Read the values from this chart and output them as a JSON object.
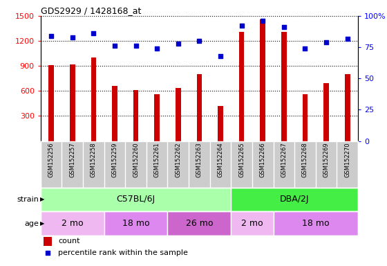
{
  "title": "GDS2929 / 1428168_at",
  "samples": [
    "GSM152256",
    "GSM152257",
    "GSM152258",
    "GSM152259",
    "GSM152260",
    "GSM152261",
    "GSM152262",
    "GSM152263",
    "GSM152264",
    "GSM152265",
    "GSM152266",
    "GSM152267",
    "GSM152268",
    "GSM152269",
    "GSM152270"
  ],
  "counts": [
    910,
    915,
    1000,
    660,
    615,
    560,
    640,
    800,
    420,
    1310,
    1460,
    1310,
    560,
    690,
    800
  ],
  "percentile_ranks": [
    84,
    83,
    86,
    76,
    76,
    74,
    78,
    80,
    68,
    92,
    96,
    91,
    74,
    79,
    82
  ],
  "ylim_left": [
    0,
    1500
  ],
  "ylim_right": [
    0,
    100
  ],
  "yticks_left": [
    300,
    600,
    900,
    1200,
    1500
  ],
  "yticks_right": [
    0,
    25,
    50,
    75,
    100
  ],
  "bar_color": "#cc0000",
  "dot_color": "#0000cc",
  "tick_area_bg": "#cccccc",
  "strain_groups": [
    {
      "label": "C57BL/6J",
      "start": 0,
      "end": 9,
      "color": "#aaffaa"
    },
    {
      "label": "DBA/2J",
      "start": 9,
      "end": 15,
      "color": "#44ee44"
    }
  ],
  "age_groups": [
    {
      "label": "2 mo",
      "start": 0,
      "end": 3,
      "color": "#f0b8f0"
    },
    {
      "label": "18 mo",
      "start": 3,
      "end": 6,
      "color": "#dd88ee"
    },
    {
      "label": "26 mo",
      "start": 6,
      "end": 9,
      "color": "#cc66cc"
    },
    {
      "label": "2 mo",
      "start": 9,
      "end": 11,
      "color": "#f0b8f0"
    },
    {
      "label": "18 mo",
      "start": 11,
      "end": 15,
      "color": "#dd88ee"
    }
  ],
  "strain_label": "strain",
  "age_label": "age",
  "legend_count_label": "count",
  "legend_pct_label": "percentile rank within the sample",
  "bar_width": 0.25,
  "dot_size": 20
}
